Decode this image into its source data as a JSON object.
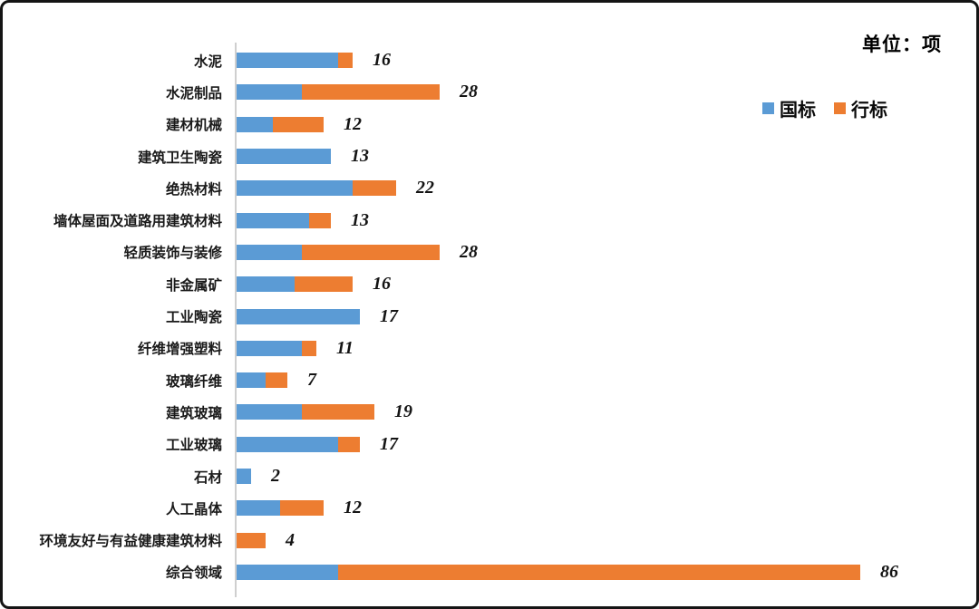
{
  "unit_label": "单位：项",
  "legend": [
    {
      "label": "国标",
      "color": "#5B9BD5"
    },
    {
      "label": "行标",
      "color": "#ED7D31"
    }
  ],
  "colors": {
    "national": "#5B9BD5",
    "industry": "#ED7D31",
    "axis": "#cfcfcf"
  },
  "chart_data": {
    "type": "bar",
    "orientation": "horizontal-stacked",
    "title": "单位：项",
    "legend_position": "top-right",
    "grid": false,
    "x_axis_hidden": true,
    "xlim": [
      0,
      88
    ],
    "categories": [
      "水泥",
      "水泥制品",
      "建材机械",
      "建筑卫生陶瓷",
      "绝热材料",
      "墙体屋面及道路用建筑材料",
      "轻质装饰与装修",
      "非金属矿",
      "工业陶瓷",
      "纤维增强塑料",
      "玻璃纤维",
      "建筑玻璃",
      "工业玻璃",
      "石材",
      "人工晶体",
      "环境友好与有益健康建筑材料",
      "综合领域"
    ],
    "series": [
      {
        "name": "国标",
        "color": "#5B9BD5",
        "values": [
          14,
          9,
          5,
          13,
          16,
          10,
          9,
          8,
          17,
          9,
          4,
          9,
          14,
          2,
          6,
          0,
          14
        ]
      },
      {
        "name": "行标",
        "color": "#ED7D31",
        "values": [
          2,
          19,
          7,
          0,
          6,
          3,
          19,
          8,
          0,
          2,
          3,
          10,
          3,
          0,
          6,
          4,
          72
        ]
      }
    ],
    "totals": [
      16,
      28,
      12,
      13,
      22,
      13,
      28,
      16,
      17,
      11,
      7,
      19,
      17,
      2,
      12,
      4,
      86
    ]
  }
}
